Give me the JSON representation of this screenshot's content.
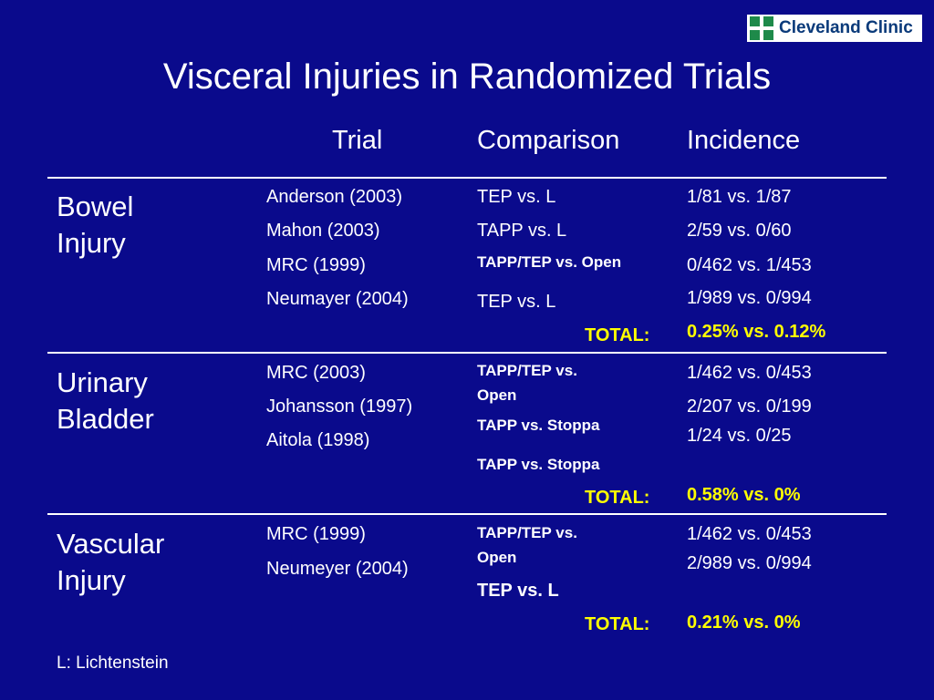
{
  "logo": {
    "text": "Cleveland Clinic"
  },
  "title": "Visceral Injuries in Randomized Trials",
  "headers": {
    "trial": "Trial",
    "comparison": "Comparison",
    "incidence": "Incidence"
  },
  "sections": [
    {
      "category_line1": "Bowel",
      "category_line2": "Injury",
      "trials": [
        "Anderson (2003)",
        "Mahon (2003)",
        "MRC (1999)",
        "Neumayer (2004)"
      ],
      "comparisons": [
        "TEP vs. L",
        "TAPP vs. L",
        "TAPP/TEP vs. Open",
        "TEP vs. L"
      ],
      "incidences": [
        "1/81 vs. 1/87",
        "2/59 vs. 0/60",
        "0/462 vs. 1/453",
        "1/989 vs. 0/994"
      ],
      "total_label": "TOTAL:",
      "total_value": "0.25% vs. 0.12%"
    },
    {
      "category_line1": "Urinary",
      "category_line2": "Bladder",
      "trials": [
        "MRC (2003)",
        "Johansson (1997)",
        "Aitola (1998)"
      ],
      "comparisons": [
        "TAPP/TEP vs.",
        "Open",
        "TAPP vs. Stoppa",
        "TAPP vs. Stoppa"
      ],
      "incidences": [
        "1/462 vs. 0/453",
        "2/207 vs. 0/199",
        "1/24 vs. 0/25"
      ],
      "total_label": "TOTAL:",
      "total_value": "0.58% vs. 0%"
    },
    {
      "category_line1": "Vascular",
      "category_line2": "Injury",
      "trials": [
        "MRC (1999)",
        "Neumeyer (2004)"
      ],
      "comparisons": [
        "TAPP/TEP vs.",
        "Open",
        "TEP vs. L"
      ],
      "incidences": [
        "1/462 vs. 0/453",
        "2/989 vs. 0/994"
      ],
      "total_label": "TOTAL:",
      "total_value": "0.21% vs. 0%"
    }
  ],
  "footnote": "L: Lichtenstein",
  "colors": {
    "background": "#0a0a8c",
    "text": "#ffffff",
    "highlight": "#ffff00",
    "logo_green": "#1e8a4a",
    "logo_text": "#0a3a7a"
  }
}
